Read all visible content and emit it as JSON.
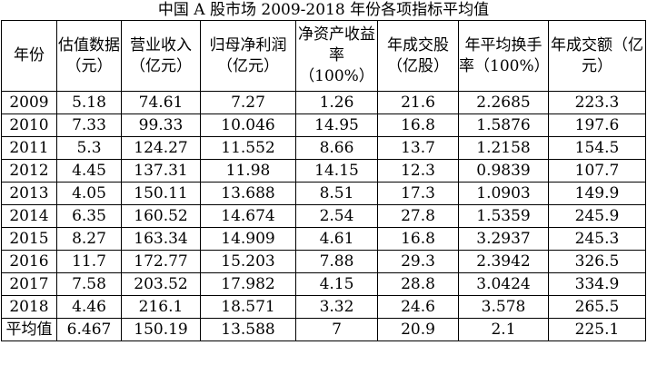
{
  "title": "中国 A 股市场 2009-2018 年份各项指标平均值",
  "columns": [
    "年份",
    "估值数据（元）",
    "营业收入（亿元）",
    "归母净利润（亿元）",
    "净资产收益率（100%）",
    "年成交股（亿股）",
    "年平均换手率（100%）",
    "年成交额（亿元）"
  ],
  "rows": [
    [
      "2009",
      "5.18",
      "74.61",
      "7.27",
      "1.26",
      "21.6",
      "2.2685",
      "223.3"
    ],
    [
      "2010",
      "7.33",
      "99.33",
      "10.046",
      "14.95",
      "16.8",
      "1.5876",
      "197.6"
    ],
    [
      "2011",
      "5.3",
      "124.27",
      "11.552",
      "8.66",
      "13.7",
      "1.2158",
      "154.5"
    ],
    [
      "2012",
      "4.45",
      "137.31",
      "11.98",
      "14.15",
      "12.3",
      "0.9839",
      "107.7"
    ],
    [
      "2013",
      "4.05",
      "150.11",
      "13.688",
      "8.51",
      "17.3",
      "1.0903",
      "149.9"
    ],
    [
      "2014",
      "6.35",
      "160.52",
      "14.674",
      "2.54",
      "27.8",
      "1.5359",
      "245.9"
    ],
    [
      "2015",
      "8.27",
      "163.34",
      "14.909",
      "4.61",
      "16.8",
      "3.2937",
      "245.3"
    ],
    [
      "2016",
      "11.7",
      "172.77",
      "15.203",
      "7.88",
      "29.3",
      "2.3942",
      "326.5"
    ],
    [
      "2017",
      "7.58",
      "203.52",
      "17.982",
      "4.15",
      "28.8",
      "3.0424",
      "334.9"
    ],
    [
      "2018",
      "4.46",
      "216.1",
      "18.571",
      "3.32",
      "24.6",
      "3.578",
      "265.5"
    ],
    [
      "平均值",
      "6.467",
      "150.19",
      "13.588",
      "7",
      "20.9",
      "2.1",
      "225.1"
    ]
  ]
}
